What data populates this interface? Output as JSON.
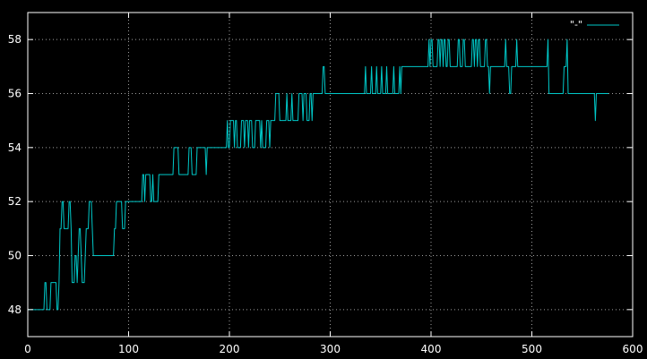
{
  "chart_data": {
    "type": "line",
    "title": "",
    "xlabel": "",
    "ylabel": "",
    "xlim": [
      0,
      600
    ],
    "ylim": [
      47,
      59
    ],
    "xticks": [
      0,
      100,
      200,
      300,
      400,
      500,
      600
    ],
    "yticks": [
      48,
      50,
      52,
      54,
      56,
      58
    ],
    "grid": true,
    "legend_position": "top-right",
    "colors": {
      "background": "#000000",
      "axis": "#ffffff",
      "grid": "#a0a0a0",
      "series": "#00c8c8"
    },
    "series": [
      {
        "name": "\"-\"",
        "points": [
          [
            0,
            48
          ],
          [
            16,
            48
          ],
          [
            17,
            49
          ],
          [
            18,
            49
          ],
          [
            19,
            48
          ],
          [
            22,
            48
          ],
          [
            23,
            49
          ],
          [
            28,
            49
          ],
          [
            29,
            48
          ],
          [
            30,
            48
          ],
          [
            31,
            49
          ],
          [
            32,
            51
          ],
          [
            33,
            51
          ],
          [
            34,
            52
          ],
          [
            35,
            52
          ],
          [
            36,
            51
          ],
          [
            40,
            51
          ],
          [
            41,
            52
          ],
          [
            42,
            52
          ],
          [
            43,
            51
          ],
          [
            44,
            49
          ],
          [
            46,
            49
          ],
          [
            47,
            50
          ],
          [
            48,
            50
          ],
          [
            49,
            49
          ],
          [
            50,
            50
          ],
          [
            51,
            51
          ],
          [
            52,
            51
          ],
          [
            53,
            50
          ],
          [
            54,
            49
          ],
          [
            56,
            49
          ],
          [
            57,
            50
          ],
          [
            58,
            51
          ],
          [
            60,
            51
          ],
          [
            61,
            52
          ],
          [
            63,
            52
          ],
          [
            64,
            51
          ],
          [
            65,
            50
          ],
          [
            85,
            50
          ],
          [
            86,
            51
          ],
          [
            87,
            51
          ],
          [
            88,
            52
          ],
          [
            93,
            52
          ],
          [
            94,
            51
          ],
          [
            96,
            51
          ],
          [
            97,
            52
          ],
          [
            100,
            52
          ],
          [
            101,
            52
          ],
          [
            113,
            52
          ],
          [
            114,
            53
          ],
          [
            115,
            53
          ],
          [
            116,
            52
          ],
          [
            117,
            53
          ],
          [
            119,
            53
          ],
          [
            121,
            53
          ],
          [
            122,
            52
          ],
          [
            123,
            52
          ],
          [
            124,
            53
          ],
          [
            125,
            52
          ],
          [
            129,
            52
          ],
          [
            130,
            53
          ],
          [
            137,
            53
          ],
          [
            138,
            53
          ],
          [
            144,
            53
          ],
          [
            145,
            54
          ],
          [
            149,
            54
          ],
          [
            150,
            53
          ],
          [
            159,
            53
          ],
          [
            160,
            54
          ],
          [
            162,
            54
          ],
          [
            163,
            53
          ],
          [
            167,
            53
          ],
          [
            168,
            54
          ],
          [
            176,
            54
          ],
          [
            177,
            53
          ],
          [
            178,
            54
          ],
          [
            181,
            54
          ],
          [
            182,
            54
          ],
          [
            197,
            54
          ],
          [
            198,
            55
          ],
          [
            199,
            54
          ],
          [
            200,
            54
          ],
          [
            201,
            55
          ],
          [
            204,
            55
          ],
          [
            205,
            54
          ],
          [
            206,
            55
          ],
          [
            207,
            55
          ],
          [
            208,
            54
          ],
          [
            211,
            54
          ],
          [
            212,
            55
          ],
          [
            214,
            55
          ],
          [
            215,
            54
          ],
          [
            216,
            55
          ],
          [
            218,
            55
          ],
          [
            219,
            54
          ],
          [
            220,
            55
          ],
          [
            222,
            55
          ],
          [
            223,
            54
          ],
          [
            225,
            54
          ],
          [
            226,
            55
          ],
          [
            230,
            55
          ],
          [
            231,
            54
          ],
          [
            232,
            55
          ],
          [
            233,
            54
          ],
          [
            236,
            54
          ],
          [
            237,
            55
          ],
          [
            239,
            55
          ],
          [
            240,
            54
          ],
          [
            241,
            55
          ],
          [
            245,
            55
          ],
          [
            246,
            56
          ],
          [
            249,
            56
          ],
          [
            250,
            55
          ],
          [
            256,
            55
          ],
          [
            257,
            56
          ],
          [
            258,
            55
          ],
          [
            261,
            55
          ],
          [
            262,
            56
          ],
          [
            263,
            55
          ],
          [
            268,
            55
          ],
          [
            269,
            56
          ],
          [
            272,
            56
          ],
          [
            273,
            55
          ],
          [
            274,
            56
          ],
          [
            276,
            56
          ],
          [
            277,
            55
          ],
          [
            279,
            55
          ],
          [
            280,
            56
          ],
          [
            281,
            56
          ],
          [
            282,
            55
          ],
          [
            283,
            56
          ],
          [
            292,
            56
          ],
          [
            293,
            57
          ],
          [
            294,
            57
          ],
          [
            295,
            56
          ],
          [
            302,
            56
          ],
          [
            303,
            56
          ],
          [
            334,
            56
          ],
          [
            335,
            57
          ],
          [
            336,
            56
          ],
          [
            340,
            56
          ],
          [
            341,
            57
          ],
          [
            342,
            56
          ],
          [
            345,
            56
          ],
          [
            346,
            57
          ],
          [
            347,
            56
          ],
          [
            350,
            56
          ],
          [
            351,
            57
          ],
          [
            352,
            56
          ],
          [
            355,
            56
          ],
          [
            356,
            57
          ],
          [
            357,
            56
          ],
          [
            362,
            56
          ],
          [
            363,
            57
          ],
          [
            364,
            56
          ],
          [
            368,
            56
          ],
          [
            369,
            57
          ],
          [
            370,
            56
          ],
          [
            371,
            57
          ],
          [
            372,
            57
          ],
          [
            397,
            57
          ],
          [
            398,
            58
          ],
          [
            399,
            57
          ],
          [
            400,
            58
          ],
          [
            401,
            58
          ],
          [
            402,
            57
          ],
          [
            406,
            57
          ],
          [
            407,
            58
          ],
          [
            408,
            58
          ],
          [
            409,
            57
          ],
          [
            410,
            58
          ],
          [
            411,
            58
          ],
          [
            412,
            57
          ],
          [
            413,
            58
          ],
          [
            414,
            58
          ],
          [
            415,
            57
          ],
          [
            416,
            57
          ],
          [
            417,
            58
          ],
          [
            418,
            58
          ],
          [
            419,
            57
          ],
          [
            426,
            57
          ],
          [
            427,
            58
          ],
          [
            428,
            58
          ],
          [
            429,
            57
          ],
          [
            431,
            57
          ],
          [
            432,
            58
          ],
          [
            433,
            58
          ],
          [
            434,
            57
          ],
          [
            440,
            57
          ],
          [
            441,
            58
          ],
          [
            442,
            58
          ],
          [
            443,
            57
          ],
          [
            444,
            58
          ],
          [
            445,
            58
          ],
          [
            446,
            57
          ],
          [
            447,
            58
          ],
          [
            448,
            58
          ],
          [
            449,
            57
          ],
          [
            453,
            57
          ],
          [
            454,
            58
          ],
          [
            455,
            58
          ],
          [
            456,
            57
          ],
          [
            457,
            57
          ],
          [
            458,
            56
          ],
          [
            459,
            57
          ],
          [
            473,
            57
          ],
          [
            474,
            58
          ],
          [
            475,
            57
          ],
          [
            477,
            57
          ],
          [
            478,
            56
          ],
          [
            479,
            56
          ],
          [
            480,
            57
          ],
          [
            484,
            57
          ],
          [
            485,
            58
          ],
          [
            486,
            57
          ],
          [
            490,
            57
          ],
          [
            491,
            57
          ],
          [
            515,
            57
          ],
          [
            516,
            58
          ],
          [
            517,
            56
          ],
          [
            531,
            56
          ],
          [
            532,
            57
          ],
          [
            534,
            57
          ],
          [
            535,
            58
          ],
          [
            536,
            56
          ],
          [
            562,
            56
          ],
          [
            563,
            55
          ],
          [
            564,
            56
          ],
          [
            576,
            56
          ]
        ]
      }
    ]
  }
}
